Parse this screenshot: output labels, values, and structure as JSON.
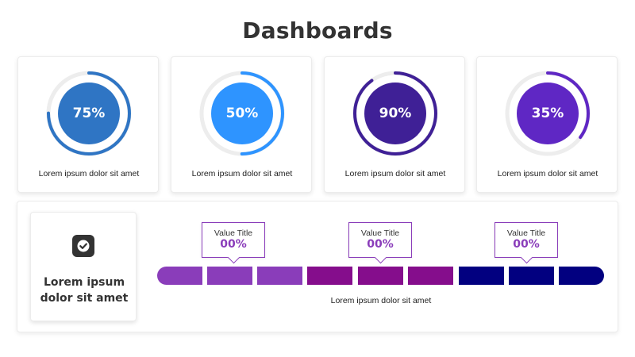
{
  "title": "Dashboards",
  "gauges": [
    {
      "value": "75%",
      "percent": 75,
      "caption": "Lorem ipsum dolor sit amet",
      "color": "#2f75c4",
      "arc": "#2f75c4"
    },
    {
      "value": "50%",
      "percent": 50,
      "caption": "Lorem ipsum dolor sit amet",
      "color": "#2e94ff",
      "arc": "#2e94ff"
    },
    {
      "value": "90%",
      "percent": 90,
      "caption": "Lorem ipsum dolor sit amet",
      "color": "#3f2096",
      "arc": "#3f2096"
    },
    {
      "value": "35%",
      "percent": 35,
      "caption": "Lorem ipsum dolor sit amet",
      "color": "#5f27c4",
      "arc": "#5f27c4"
    }
  ],
  "info": {
    "icon": "check-square-icon",
    "text_line1": "Lorem ipsum",
    "text_line2": "dolor sit amet"
  },
  "segments": [
    {
      "color": "#8a3dba"
    },
    {
      "color": "#8a3dba"
    },
    {
      "color": "#8a3dba"
    },
    {
      "color": "#850d8c"
    },
    {
      "color": "#850d8c"
    },
    {
      "color": "#850d8c"
    },
    {
      "color": "#020080"
    },
    {
      "color": "#020080"
    },
    {
      "color": "#020080"
    }
  ],
  "callouts": [
    {
      "title": "Value Title",
      "value": "00%"
    },
    {
      "title": "Value Title",
      "value": "00%"
    },
    {
      "title": "Value Title",
      "value": "00%"
    }
  ],
  "bar_caption": "Lorem ipsum dolor sit amet"
}
